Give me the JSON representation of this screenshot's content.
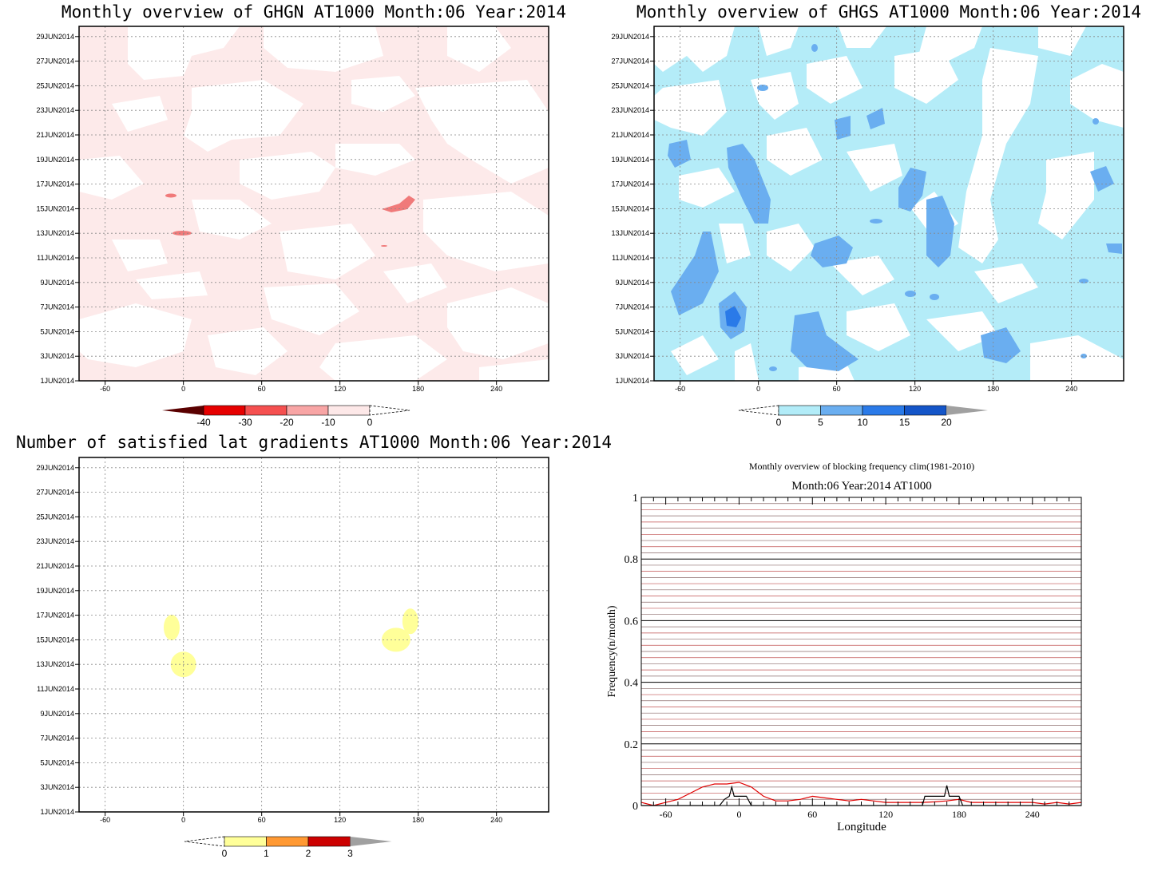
{
  "chart_data": [
    {
      "type": "heatmap",
      "title": "Monthly overview of GHGN AT1000 Month:06 Year:2014",
      "x_ticks": [
        -60,
        0,
        60,
        120,
        180,
        240
      ],
      "xlim": [
        -80,
        280
      ],
      "y_ticks": [
        "1JUN2014",
        "3JUN2014",
        "5JUN2014",
        "7JUN2014",
        "9JUN2014",
        "11JUN2014",
        "13JUN2014",
        "15JUN2014",
        "17JUN2014",
        "19JUN2014",
        "21JUN2014",
        "23JUN2014",
        "25JUN2014",
        "27JUN2014",
        "29JUN2014"
      ],
      "colorbar": {
        "ticks": [
          "-40",
          "-30",
          "-20",
          "-10",
          "0"
        ],
        "colors": [
          "#5a0000",
          "#e60000",
          "#f55050",
          "#f8a5a5",
          "#fde8e8"
        ]
      },
      "background_color": "#fdeaea"
    },
    {
      "type": "heatmap",
      "title": "Monthly overview of GHGS AT1000 Month:06 Year:2014",
      "x_ticks": [
        -60,
        0,
        60,
        120,
        180,
        240
      ],
      "xlim": [
        -80,
        280
      ],
      "y_ticks": [
        "1JUN2014",
        "3JUN2014",
        "5JUN2014",
        "7JUN2014",
        "9JUN2014",
        "11JUN2014",
        "13JUN2014",
        "15JUN2014",
        "17JUN2014",
        "19JUN2014",
        "21JUN2014",
        "23JUN2014",
        "25JUN2014",
        "27JUN2014",
        "29JUN2014"
      ],
      "colorbar": {
        "ticks": [
          "0",
          "5",
          "10",
          "15",
          "20"
        ],
        "colors": [
          "#b2ecf8",
          "#6aaef0",
          "#2a7ae8",
          "#1455c8",
          "#a0a0a0"
        ]
      },
      "background_color": "#b4ecf8"
    },
    {
      "type": "heatmap",
      "title": "Number of satisfied lat gradients AT1000 Month:06 Year:2014",
      "x_ticks": [
        -60,
        0,
        60,
        120,
        180,
        240
      ],
      "xlim": [
        -80,
        280
      ],
      "y_ticks": [
        "1JUN2014",
        "3JUN2014",
        "5JUN2014",
        "7JUN2014",
        "9JUN2014",
        "11JUN2014",
        "13JUN2014",
        "15JUN2014",
        "17JUN2014",
        "19JUN2014",
        "21JUN2014",
        "23JUN2014",
        "25JUN2014",
        "27JUN2014",
        "29JUN2014"
      ],
      "colorbar": {
        "ticks": [
          "0",
          "1",
          "2",
          "3"
        ],
        "colors": [
          "#ffff99",
          "#ff9933",
          "#cc0000",
          "#a0a0a0"
        ]
      },
      "blobs": [
        {
          "lon": -9,
          "day": 16
        },
        {
          "lon": 0,
          "day": 13
        },
        {
          "lon": 163,
          "day": 15
        },
        {
          "lon": 174,
          "day": 16.5
        }
      ]
    },
    {
      "type": "line",
      "title": "Monthly overview of blocking frequency clim(1981-2010)",
      "subtitle": "Month:06 Year:2014  AT1000",
      "xlabel": "Longitude",
      "ylabel": "Frequency(n/month)",
      "xlim": [
        -80,
        280
      ],
      "ylim": [
        0,
        1
      ],
      "x_ticks": [
        -60,
        0,
        60,
        120,
        180,
        240
      ],
      "y_ticks": [
        "0",
        "0.2",
        "0.4",
        "0.6",
        "0.8",
        "1"
      ],
      "series": [
        {
          "color": "#e00000",
          "x": [
            -80,
            -70,
            -60,
            -50,
            -40,
            -30,
            -20,
            -10,
            0,
            10,
            20,
            30,
            40,
            50,
            60,
            70,
            80,
            90,
            100,
            110,
            120,
            130,
            140,
            150,
            160,
            170,
            180,
            190,
            200,
            210,
            220,
            230,
            240,
            250,
            260,
            270,
            280
          ],
          "y": [
            0.01,
            0.0,
            0.01,
            0.02,
            0.04,
            0.06,
            0.07,
            0.07,
            0.075,
            0.06,
            0.03,
            0.015,
            0.015,
            0.02,
            0.03,
            0.025,
            0.02,
            0.015,
            0.02,
            0.015,
            0.01,
            0.01,
            0.01,
            0.01,
            0.012,
            0.015,
            0.02,
            0.01,
            0.01,
            0.01,
            0.01,
            0.01,
            0.01,
            0.005,
            0.01,
            0.005,
            0.01
          ]
        },
        {
          "color": "#000000",
          "x": [
            -80,
            -20,
            -16,
            -12,
            -8,
            -6,
            -4,
            0,
            6,
            10,
            12,
            80,
            150,
            152,
            165,
            168,
            170,
            172,
            175,
            180,
            183,
            280
          ],
          "y": [
            0,
            0,
            0,
            0.02,
            0.03,
            0.06,
            0.03,
            0.03,
            0.03,
            0,
            0,
            0,
            0,
            0.03,
            0.03,
            0.03,
            0.065,
            0.03,
            0.03,
            0.03,
            0,
            0
          ]
        }
      ]
    }
  ]
}
